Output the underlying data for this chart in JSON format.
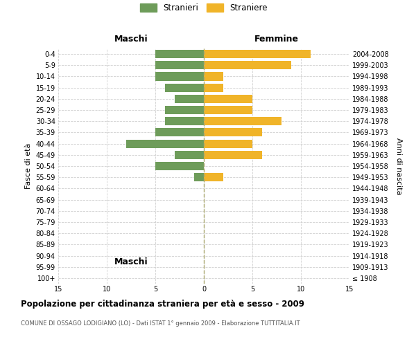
{
  "age_groups": [
    "100+",
    "95-99",
    "90-94",
    "85-89",
    "80-84",
    "75-79",
    "70-74",
    "65-69",
    "60-64",
    "55-59",
    "50-54",
    "45-49",
    "40-44",
    "35-39",
    "30-34",
    "25-29",
    "20-24",
    "15-19",
    "10-14",
    "5-9",
    "0-4"
  ],
  "birth_years": [
    "≤ 1908",
    "1909-1913",
    "1914-1918",
    "1919-1923",
    "1924-1928",
    "1929-1933",
    "1934-1938",
    "1939-1943",
    "1944-1948",
    "1949-1953",
    "1954-1958",
    "1959-1963",
    "1964-1968",
    "1969-1973",
    "1974-1978",
    "1979-1983",
    "1984-1988",
    "1989-1993",
    "1994-1998",
    "1999-2003",
    "2004-2008"
  ],
  "maschi": [
    0,
    0,
    0,
    0,
    0,
    0,
    0,
    0,
    0,
    1,
    5,
    3,
    8,
    5,
    4,
    4,
    3,
    4,
    5,
    5,
    5
  ],
  "femmine": [
    0,
    0,
    0,
    0,
    0,
    0,
    0,
    0,
    0,
    2,
    0,
    6,
    5,
    6,
    8,
    5,
    5,
    2,
    2,
    9,
    11
  ],
  "male_color": "#6e9c5a",
  "female_color": "#f0b429",
  "title": "Popolazione per cittadinanza straniera per età e sesso - 2009",
  "subtitle": "COMUNE DI OSSAGO LODIGIANO (LO) - Dati ISTAT 1° gennaio 2009 - Elaborazione TUTTITALIA.IT",
  "xlabel_left": "Maschi",
  "xlabel_right": "Femmine",
  "ylabel_left": "Fasce di età",
  "ylabel_right": "Anni di nascita",
  "legend_male": "Stranieri",
  "legend_female": "Straniere",
  "xlim": 15,
  "bg_color": "#ffffff",
  "grid_color": "#d0d0d0",
  "bar_height": 0.75
}
